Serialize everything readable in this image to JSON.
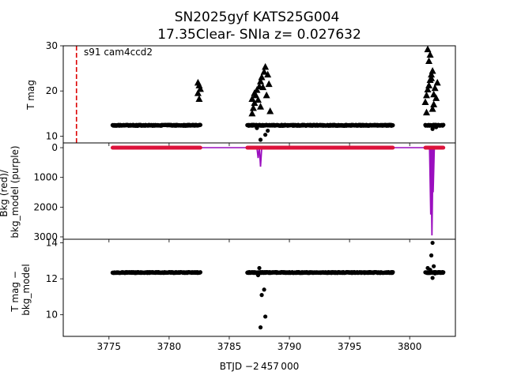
{
  "title_line1": "SN2025gyf  KATS25G004",
  "title_line2": "17.35Clear- SNIa z= 0.027632",
  "annotation": "s91 cam4ccd2",
  "xlabel": "BTJD −2 457 000",
  "colors": {
    "points": "#000000",
    "bkg": "#dc143c",
    "model": "#9b0fbf",
    "marker_line": "#dd0000"
  },
  "chart_data": [
    {
      "name": "magnitude",
      "type": "scatter",
      "ylabel": "T mag",
      "ylim": [
        30,
        8.5
      ],
      "xlim": [
        3771.2,
        3803.8
      ],
      "xticks": [
        3775,
        3780,
        3785,
        3790,
        3795,
        3800
      ],
      "yticks": [
        10,
        20,
        30
      ],
      "vline_x": 3772.3,
      "dense_segments": [
        [
          3775.3,
          3782.6,
          12.4
        ],
        [
          3786.5,
          3798.6,
          12.4
        ],
        [
          3801.3,
          3802.8,
          12.4
        ]
      ],
      "points": [
        [
          3787.6,
          9.2
        ],
        [
          3788.0,
          10.3
        ],
        [
          3788.2,
          11.2
        ],
        [
          3787.3,
          11.8
        ],
        [
          3801.9,
          11.6
        ],
        [
          3802.2,
          12.0
        ]
      ],
      "upper_limits": [
        [
          3782.5,
          18.2
        ],
        [
          3782.4,
          19.5
        ],
        [
          3782.6,
          20.4
        ],
        [
          3782.5,
          21.2
        ],
        [
          3782.4,
          21.8
        ],
        [
          3786.9,
          15.0
        ],
        [
          3787.0,
          16.2
        ],
        [
          3787.1,
          17.3
        ],
        [
          3786.9,
          18.2
        ],
        [
          3787.2,
          19.0
        ],
        [
          3787.3,
          20.2
        ],
        [
          3787.5,
          21.0
        ],
        [
          3787.6,
          22.1
        ],
        [
          3787.7,
          23.0
        ],
        [
          3787.9,
          24.2
        ],
        [
          3788.0,
          25.3
        ],
        [
          3787.8,
          20.8
        ],
        [
          3788.1,
          19.0
        ],
        [
          3788.3,
          21.5
        ],
        [
          3788.2,
          23.6
        ],
        [
          3787.4,
          18.0
        ],
        [
          3787.6,
          16.5
        ],
        [
          3787.1,
          19.5
        ],
        [
          3788.4,
          15.5
        ],
        [
          3801.3,
          17.5
        ],
        [
          3801.4,
          19.0
        ],
        [
          3801.5,
          20.3
        ],
        [
          3801.6,
          21.2
        ],
        [
          3801.7,
          22.4
        ],
        [
          3801.8,
          23.6
        ],
        [
          3801.9,
          24.4
        ],
        [
          3801.6,
          26.6
        ],
        [
          3801.7,
          28.0
        ],
        [
          3801.5,
          29.2
        ],
        [
          3802.0,
          19.2
        ],
        [
          3802.1,
          20.6
        ],
        [
          3802.2,
          18.4
        ],
        [
          3801.9,
          16.0
        ],
        [
          3802.3,
          21.8
        ],
        [
          3801.4,
          15.2
        ],
        [
          3802.0,
          17.0
        ],
        [
          3801.8,
          22.8
        ]
      ]
    },
    {
      "name": "background",
      "type": "line",
      "ylabel": "Bkg (red)/\nbkg_model (purple)",
      "ylim": [
        -160,
        3080
      ],
      "xlim": [
        3771.2,
        3803.8
      ],
      "yticks": [
        0,
        1000,
        2000,
        3000
      ],
      "bkg_segments": [
        [
          3775.3,
          3782.6,
          0
        ],
        [
          3786.5,
          3798.6,
          0
        ],
        [
          3801.3,
          3802.8,
          0
        ]
      ],
      "model_spikes": [
        [
          3787.4,
          350
        ],
        [
          3787.6,
          640
        ],
        [
          3801.75,
          2250
        ],
        [
          3801.85,
          2950
        ],
        [
          3801.95,
          1500
        ]
      ]
    },
    {
      "name": "corrected",
      "type": "scatter",
      "ylabel": "T mag −\nbkg_model",
      "ylim": [
        14.2,
        8.8
      ],
      "xlim": [
        3771.2,
        3803.8
      ],
      "yticks": [
        10,
        12,
        14
      ],
      "dense_segments": [
        [
          3775.3,
          3782.6,
          12.35
        ],
        [
          3786.5,
          3798.6,
          12.35
        ],
        [
          3801.3,
          3802.8,
          12.35
        ]
      ],
      "points": [
        [
          3787.6,
          9.3
        ],
        [
          3788.0,
          9.9
        ],
        [
          3787.7,
          11.1
        ],
        [
          3787.9,
          11.4
        ],
        [
          3787.5,
          12.6
        ],
        [
          3787.4,
          12.2
        ],
        [
          3801.9,
          12.05
        ],
        [
          3801.7,
          12.5
        ],
        [
          3801.5,
          12.6
        ],
        [
          3802.0,
          12.7
        ],
        [
          3801.8,
          13.3
        ],
        [
          3801.9,
          14.0
        ],
        [
          3802.1,
          12.3
        ]
      ]
    }
  ]
}
